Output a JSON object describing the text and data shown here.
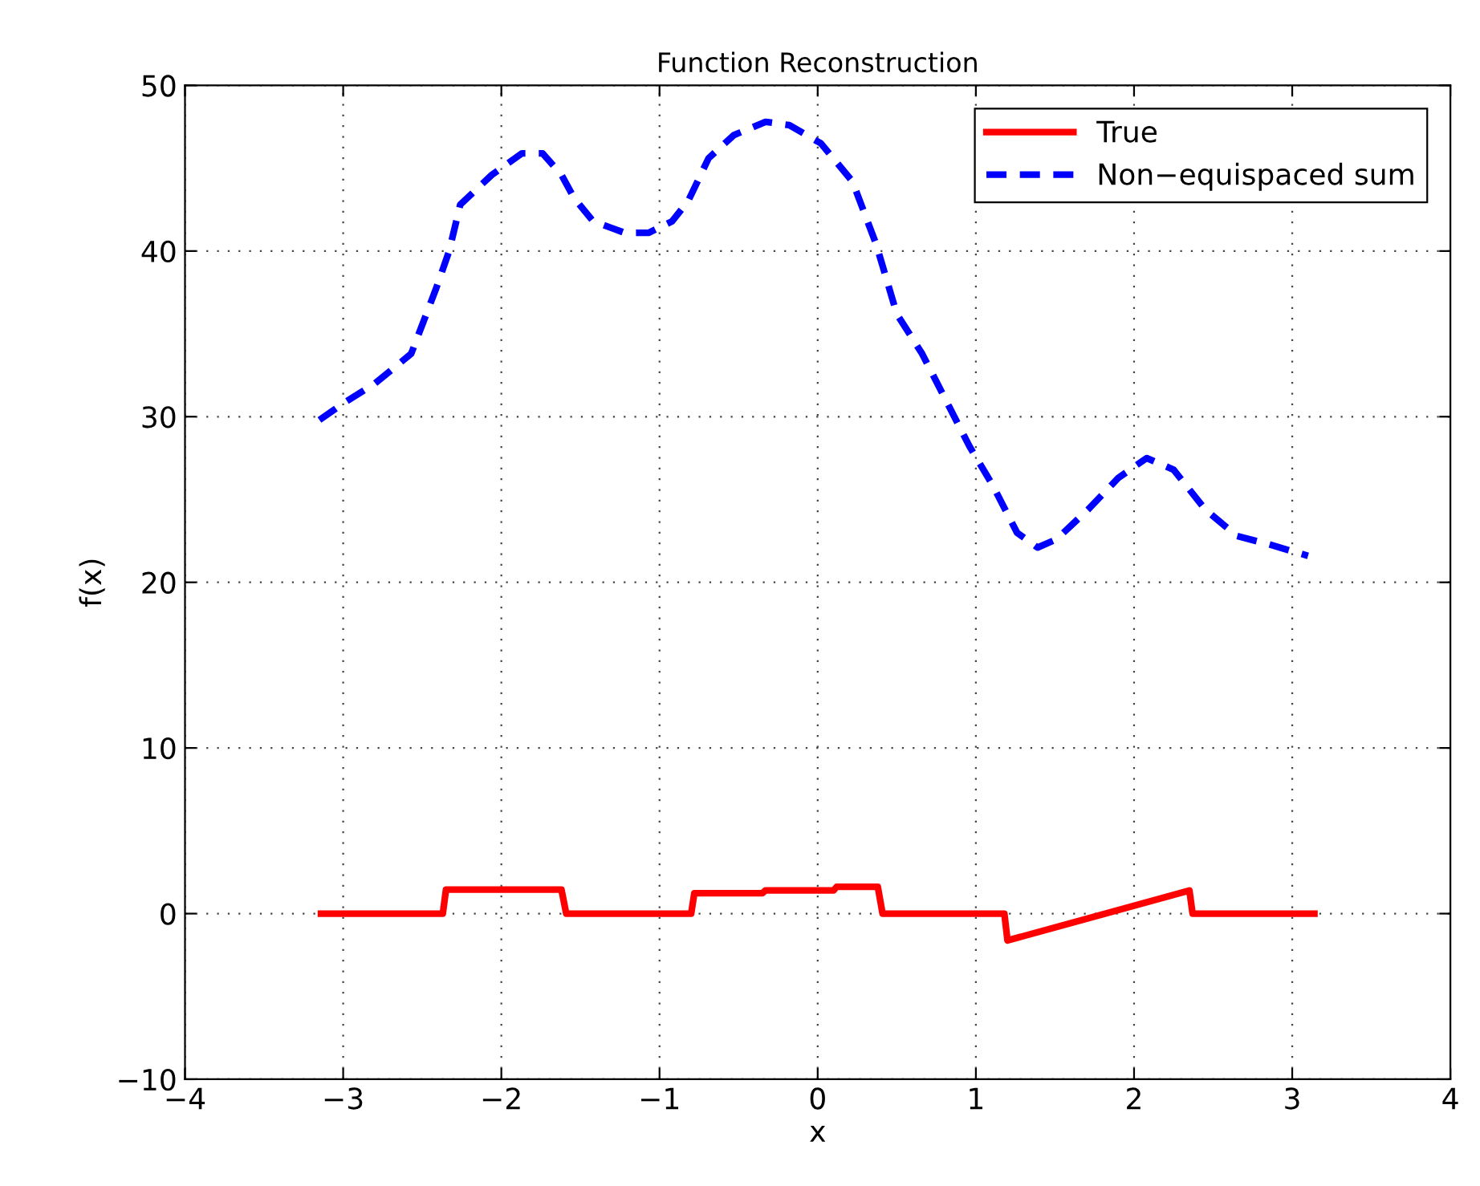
{
  "chart_data": {
    "type": "line",
    "title": "Function Reconstruction",
    "xlabel": "x",
    "ylabel": "f(x)",
    "xlim": [
      -4,
      4
    ],
    "xticks": [
      -4,
      -3,
      -2,
      -1,
      0,
      1,
      2,
      3,
      4
    ],
    "ylim": [
      -10,
      50
    ],
    "yticks": [
      -10,
      0,
      10,
      20,
      30,
      40,
      50
    ],
    "grid": true,
    "legend": "top right",
    "series": [
      {
        "name": "True",
        "color": "#ff0000",
        "line_style": "solid",
        "x": [
          -3.14,
          -2.37,
          -2.35,
          -1.62,
          -1.59,
          -0.8,
          -0.78,
          -0.35,
          -0.33,
          0.1,
          0.12,
          0.38,
          0.41,
          1.18,
          1.2,
          2.35,
          2.37,
          3.14
        ],
        "values": [
          0,
          0,
          1.45,
          1.45,
          0,
          0,
          1.23,
          1.23,
          1.4,
          1.4,
          1.62,
          1.62,
          0,
          0,
          -1.62,
          1.4,
          0,
          0
        ]
      },
      {
        "name": "Non−equispaced sum",
        "color": "#0000ff",
        "line_style": "dashed",
        "x": [
          -3.15,
          -3.0,
          -2.8,
          -2.57,
          -2.41,
          -2.33,
          -2.26,
          -2.06,
          -1.87,
          -1.74,
          -1.62,
          -1.54,
          -1.42,
          -1.22,
          -1.07,
          -0.92,
          -0.82,
          -0.69,
          -0.53,
          -0.33,
          -0.18,
          0.02,
          0.22,
          0.37,
          0.5,
          0.66,
          0.81,
          0.96,
          1.11,
          1.26,
          1.39,
          1.51,
          1.71,
          1.9,
          2.08,
          2.25,
          2.45,
          2.65,
          2.85,
          3.1
        ],
        "values": [
          29.8,
          30.8,
          32.0,
          33.8,
          37.8,
          40.0,
          42.8,
          44.6,
          45.9,
          45.9,
          44.6,
          43.2,
          41.8,
          41.1,
          41.1,
          41.8,
          43.0,
          45.6,
          47.0,
          47.8,
          47.6,
          46.5,
          44.2,
          40.4,
          36.2,
          33.8,
          31.0,
          28.2,
          25.8,
          23.0,
          22.1,
          22.6,
          24.4,
          26.3,
          27.5,
          26.8,
          24.4,
          22.8,
          22.3,
          21.6
        ]
      }
    ]
  }
}
